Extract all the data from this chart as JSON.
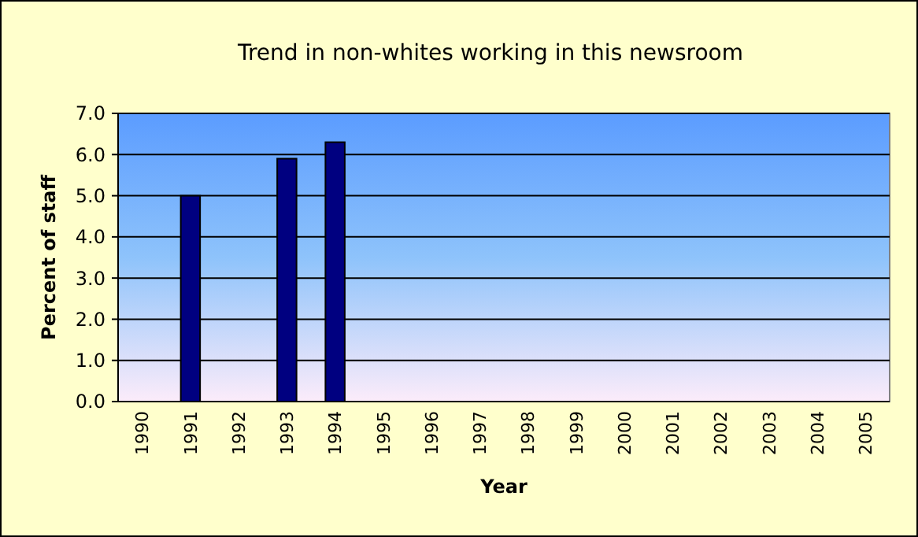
{
  "chart_data": {
    "type": "bar",
    "title": "Trend in non-whites working in this newsroom",
    "xlabel": "Year",
    "ylabel": "Percent of staff",
    "categories": [
      "1990",
      "1991",
      "1992",
      "1993",
      "1994",
      "1995",
      "1996",
      "1997",
      "1998",
      "1999",
      "2000",
      "2001",
      "2002",
      "2003",
      "2004",
      "2005"
    ],
    "values": [
      null,
      5.0,
      null,
      5.9,
      6.3,
      null,
      null,
      null,
      null,
      null,
      null,
      null,
      null,
      null,
      null,
      null
    ],
    "color": "#000080",
    "ylim": [
      0,
      7
    ],
    "yticks": [
      {
        "value": 0,
        "label": "0.0"
      },
      {
        "value": 1,
        "label": "1.0"
      },
      {
        "value": 2,
        "label": "2.0"
      },
      {
        "value": 3,
        "label": "3.0"
      },
      {
        "value": 4,
        "label": "4.0"
      },
      {
        "value": 5,
        "label": "5.0"
      },
      {
        "value": 6,
        "label": "6.0"
      },
      {
        "value": 7,
        "label": "7.0"
      }
    ],
    "grid": "y"
  }
}
